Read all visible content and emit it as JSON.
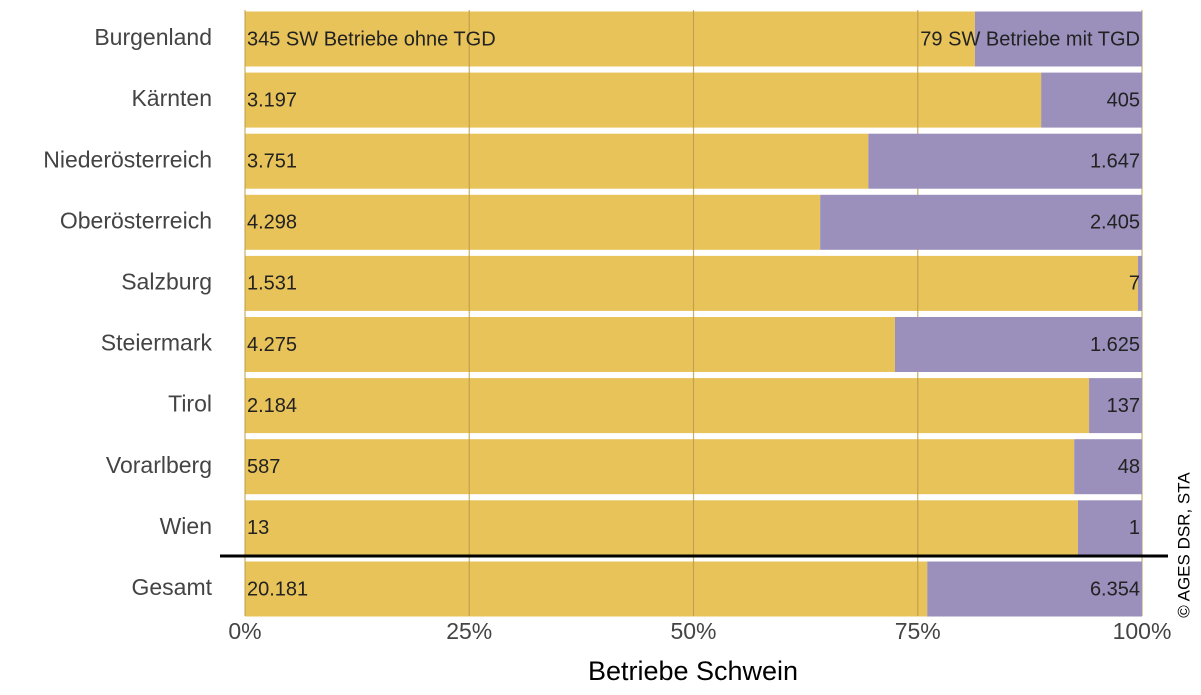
{
  "chart_data": {
    "type": "bar",
    "orientation": "horizontal",
    "stacking": "percent",
    "categories": [
      "Burgenland",
      "Kärnten",
      "Niederösterreich",
      "Oberösterreich",
      "Salzburg",
      "Steiermark",
      "Tirol",
      "Vorarlberg",
      "Wien",
      "Gesamt"
    ],
    "series": [
      {
        "color": "#e8c35a",
        "values": [
          345,
          3197,
          3751,
          4298,
          1531,
          4275,
          2184,
          587,
          13,
          20181
        ],
        "value_labels": [
          "345 SW Betriebe ohne TGD",
          "3.197",
          "3.751",
          "4.298",
          "1.531",
          "4.275",
          "2.184",
          "587",
          "13",
          "20.181"
        ]
      },
      {
        "color": "#9b8fbc",
        "values": [
          79,
          405,
          1647,
          2405,
          7,
          1625,
          137,
          48,
          1,
          6354
        ],
        "value_labels": [
          "79 SW Betriebe mit TGD",
          "405",
          "1.647",
          "2.405",
          "7",
          "1.625",
          "137",
          "48",
          "1",
          "6.354"
        ]
      }
    ],
    "xlabel": "Betriebe Schwein",
    "xlim": [
      0,
      100
    ],
    "xticks": [
      {
        "value": 0,
        "label": "0%"
      },
      {
        "value": 25,
        "label": "25%"
      },
      {
        "value": 50,
        "label": "50%"
      },
      {
        "value": 75,
        "label": "75%"
      },
      {
        "value": 100,
        "label": "100%"
      }
    ],
    "grid": true,
    "source": "© AGES DSR, STA"
  }
}
